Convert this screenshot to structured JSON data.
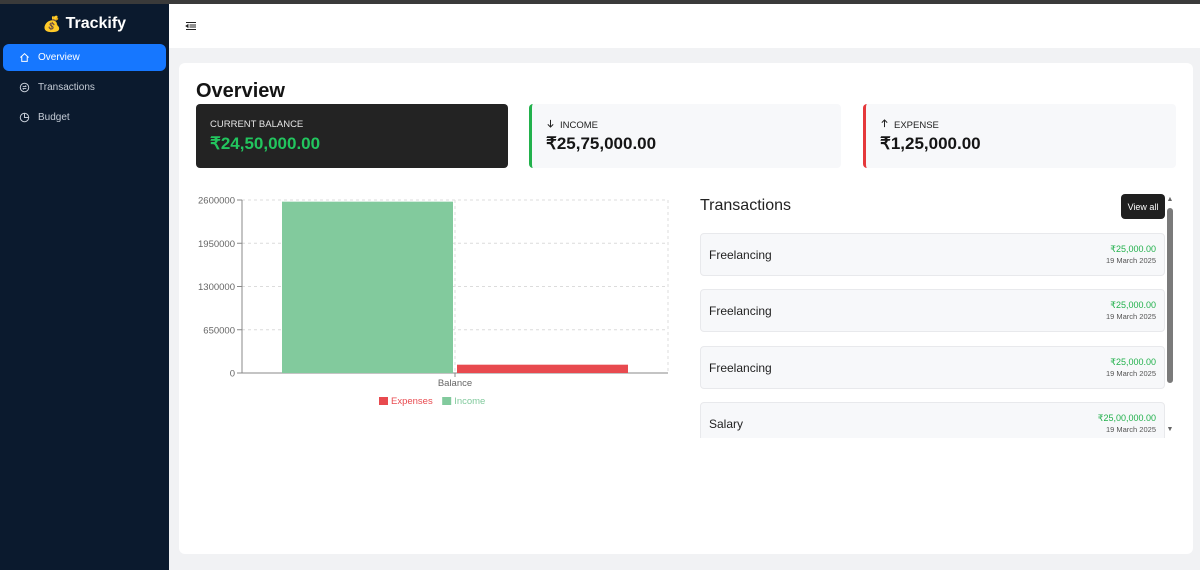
{
  "app": {
    "name": "Trackify",
    "logo_icon": "money-bag-icon"
  },
  "sidebar": {
    "items": [
      {
        "label": "Overview",
        "icon": "home-icon",
        "active": true
      },
      {
        "label": "Transactions",
        "icon": "transactions-icon",
        "active": false
      },
      {
        "label": "Budget",
        "icon": "pie-chart-icon",
        "active": false
      }
    ]
  },
  "header": {
    "menu_icon": "menu-fold-icon"
  },
  "main": {
    "title": "Overview"
  },
  "stats": {
    "balance": {
      "label": "CURRENT BALANCE",
      "value": "₹24,50,000.00"
    },
    "income": {
      "label": "INCOME",
      "value": "₹25,75,000.00",
      "icon": "arrow-down-icon"
    },
    "expense": {
      "label": "EXPENSE",
      "value": "₹1,25,000.00",
      "icon": "arrow-up-icon"
    }
  },
  "chart_data": {
    "type": "bar",
    "categories": [
      "Balance"
    ],
    "series": [
      {
        "name": "Income",
        "values": [
          2575000
        ],
        "color": "#82ca9d"
      },
      {
        "name": "Expenses",
        "values": [
          125000
        ],
        "color": "#e84a4f"
      }
    ],
    "ylim": [
      0,
      2600000
    ],
    "yticks": [
      "2600000",
      "1950000",
      "1300000",
      "650000",
      "0"
    ],
    "legend": [
      "Expenses",
      "Income"
    ],
    "legend_position": "bottom",
    "grid": true
  },
  "transactions": {
    "title": "Transactions",
    "view_all_label": "View all",
    "items": [
      {
        "name": "Freelancing",
        "amount": "₹25,000.00",
        "date": "19 March 2025"
      },
      {
        "name": "Freelancing",
        "amount": "₹25,000.00",
        "date": "19 March 2025"
      },
      {
        "name": "Freelancing",
        "amount": "₹25,000.00",
        "date": "19 March 2025"
      },
      {
        "name": "Salary",
        "amount": "₹25,00,000.00",
        "date": "19 March 2025"
      }
    ]
  },
  "colors": {
    "accent": "#1677ff",
    "sidebar_bg": "#0b1a2e",
    "income": "#22b14c",
    "expense": "#e5383b"
  }
}
